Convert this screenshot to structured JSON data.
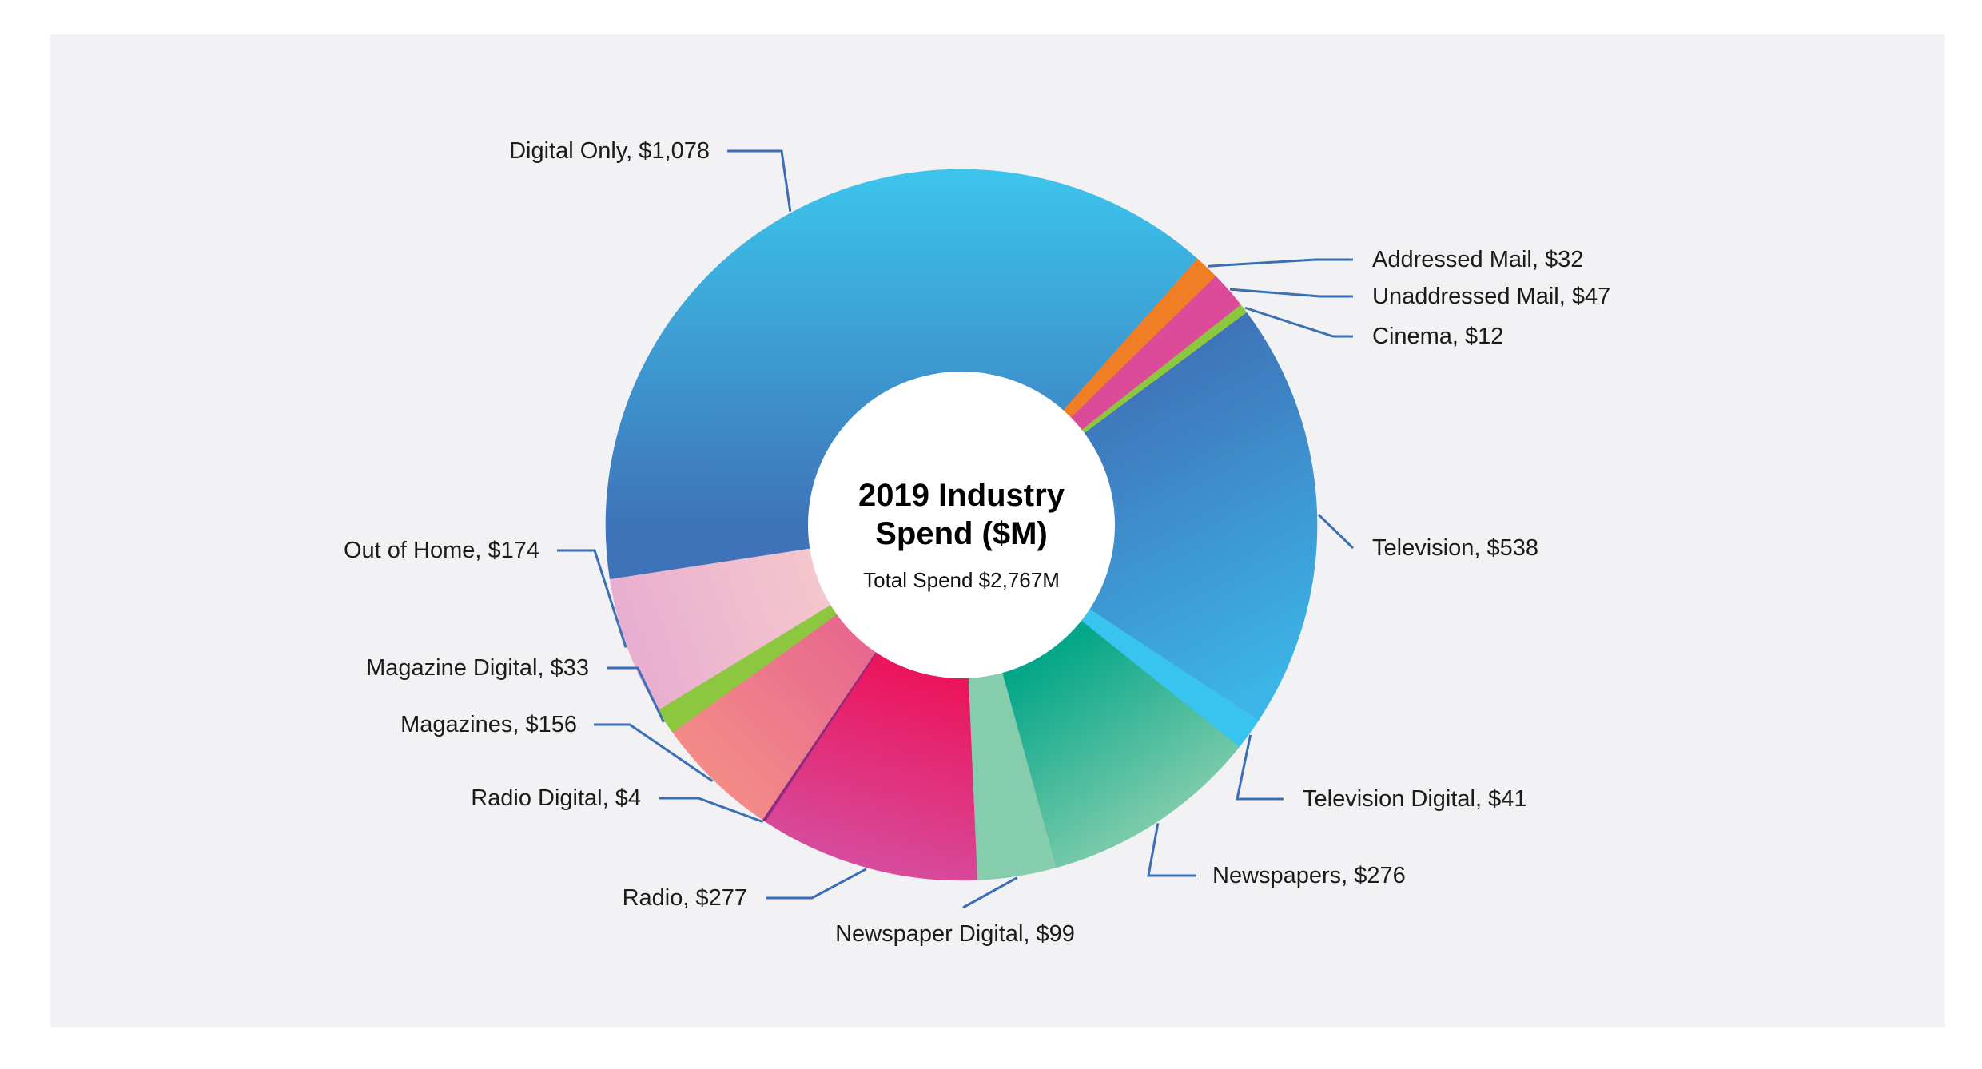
{
  "chart_data": {
    "type": "pie",
    "donut": true,
    "center_title_lines": [
      "2019 Industry",
      "Spend ($M)"
    ],
    "center_subtitle": "Total Spend $2,767M",
    "slices": [
      {
        "name": "Addressed Mail",
        "value": 32,
        "label": "Addressed Mail, $32",
        "color": "#f07e24"
      },
      {
        "name": "Unaddressed Mail",
        "value": 47,
        "label": "Unaddressed Mail, $47",
        "color": "#dc4a9a"
      },
      {
        "name": "Cinema",
        "value": 12,
        "label": "Cinema, $12",
        "color": "#8dc63f"
      },
      {
        "name": "Television",
        "value": 538,
        "label": "Television, $538",
        "color": "#3f72b9",
        "color2": "#3cb5e6"
      },
      {
        "name": "Television Digital",
        "value": 41,
        "label": "Television Digital, $41",
        "color": "#38c4ee"
      },
      {
        "name": "Newspapers",
        "value": 276,
        "label": "Newspapers, $276",
        "color": "#02a688",
        "color2": "#7ccbab"
      },
      {
        "name": "Newspaper Digital",
        "value": 99,
        "label": "Newspaper Digital, $99",
        "color": "#86cdae"
      },
      {
        "name": "Radio",
        "value": 277,
        "label": "Radio, $277",
        "color": "#ec145b",
        "color2": "#d64c9d"
      },
      {
        "name": "Radio Digital",
        "value": 4,
        "label": "Radio Digital, $4",
        "color": "#8e2a80"
      },
      {
        "name": "Magazines",
        "value": 156,
        "label": "Magazines, $156",
        "color": "#e8688e",
        "color2": "#f38b88"
      },
      {
        "name": "Magazine Digital",
        "value": 33,
        "label": "Magazine Digital, $33",
        "color": "#8dc63f"
      },
      {
        "name": "Out of Home",
        "value": 174,
        "label": "Out of Home, $174",
        "color": "#f4c6cd",
        "color2": "#e9aed0"
      },
      {
        "name": "Digital Only",
        "value": 1078,
        "label": "Digital Only, $1,078",
        "color": "#3cc5ed",
        "color2": "#3e73b9"
      }
    ],
    "leader_line_color": "#3b6fb5"
  }
}
